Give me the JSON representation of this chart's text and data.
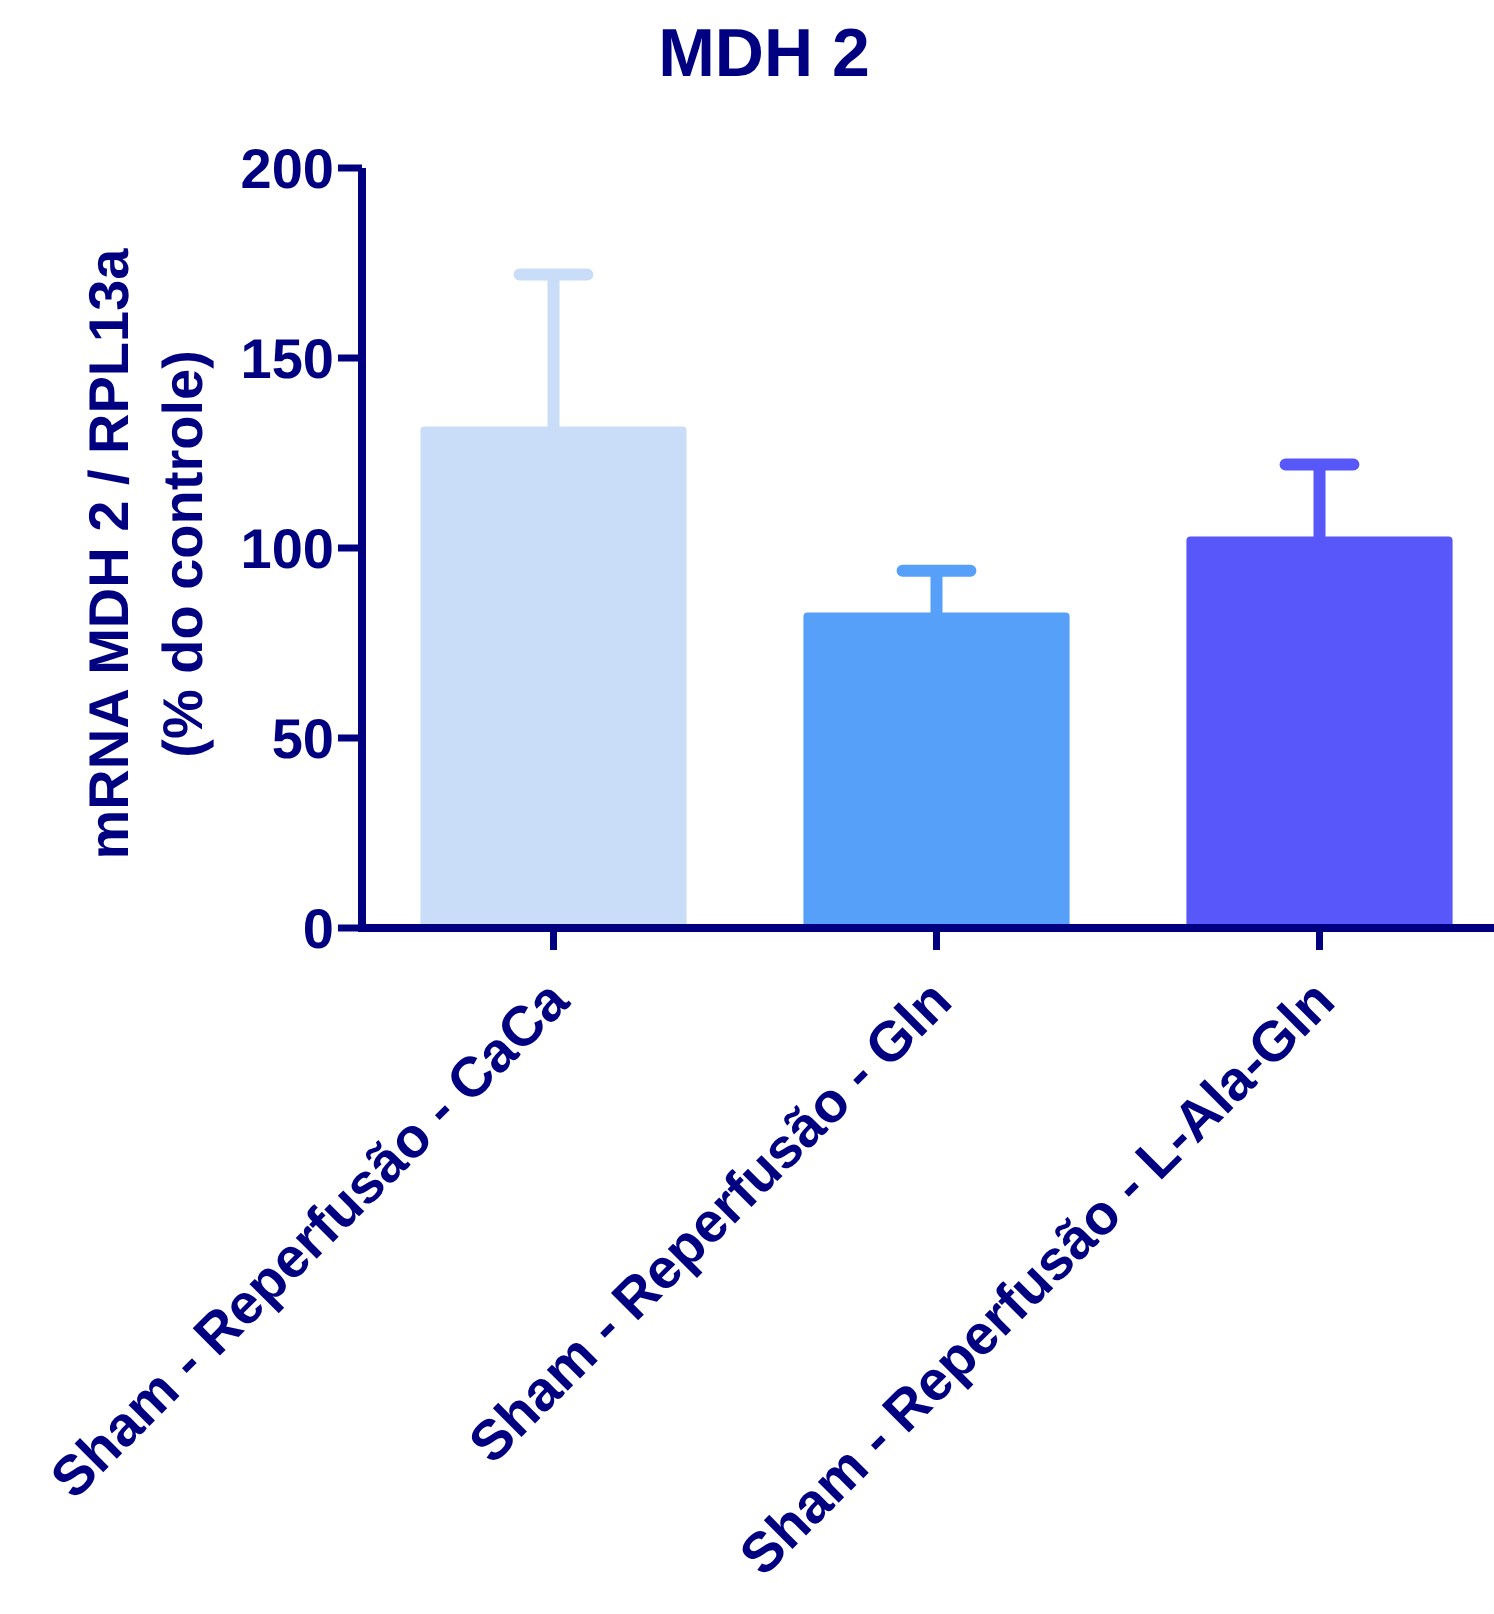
{
  "chart_data": {
    "type": "bar",
    "title": "MDH 2",
    "ylabel": "mRNA MDH 2 / RPL13a\n(% do controle)",
    "categories": [
      "Sham - Reperfusão - CaCa",
      "Sham - Reperfusão - Gln",
      "Sham - Reperfusão - L-Ala-Gln"
    ],
    "values": [
      132,
      83,
      103
    ],
    "colors": [
      "#c9ddf8",
      "#56a0fa",
      "#5757fa"
    ],
    "errors": [
      [
        132,
        172
      ],
      [
        83,
        94
      ],
      [
        103,
        122
      ]
    ],
    "ylim": [
      0,
      200
    ],
    "yticks": [
      0,
      50,
      100,
      150,
      200
    ]
  }
}
